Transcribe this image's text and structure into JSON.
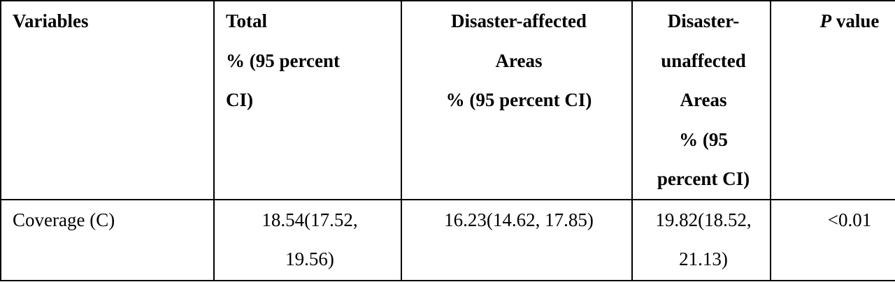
{
  "table": {
    "headers": {
      "variables": "Variables",
      "total": [
        "Total",
        "% (95 percent",
        "CI)"
      ],
      "affected": [
        "Disaster-affected",
        "Areas",
        "% (95 percent CI)"
      ],
      "unaffected": [
        "Disaster-",
        "unaffected",
        "Areas",
        "% (95",
        "percent CI)"
      ],
      "p_italic": "P",
      "p_rest": " value"
    },
    "rows": [
      {
        "variable": "Coverage (C)",
        "total": [
          "18.54(17.52,",
          "19.56)"
        ],
        "affected": "16.23(14.62, 17.85)",
        "unaffected": [
          "19.82(18.52,",
          "21.13)"
        ],
        "p": "<0.01"
      }
    ]
  }
}
